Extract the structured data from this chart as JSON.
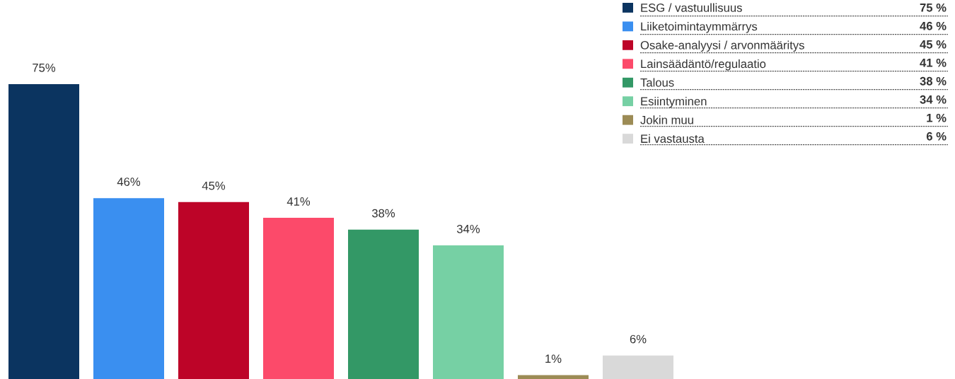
{
  "chart_data": {
    "type": "bar",
    "categories": [
      null
    ],
    "series": [
      {
        "name": "ESG / vastuullisuus",
        "color": "#0b3460",
        "values": [
          75
        ],
        "value_labels": [
          "75%"
        ]
      },
      {
        "name": "Liiketoimintaymmärrys",
        "color": "#3a8ff0",
        "values": [
          46
        ],
        "value_labels": [
          "46%"
        ]
      },
      {
        "name": "Osake-analyysi / arvonmääritys",
        "color": "#bd0428",
        "values": [
          45
        ],
        "value_labels": [
          "45%"
        ]
      },
      {
        "name": "Lainsäädäntö/regulaatio",
        "color": "#fc4a6a",
        "values": [
          41
        ],
        "value_labels": [
          "41%"
        ]
      },
      {
        "name": "Talous",
        "color": "#339866",
        "values": [
          38
        ],
        "value_labels": [
          "38%"
        ]
      },
      {
        "name": "Esiintyminen",
        "color": "#76d0a4",
        "values": [
          34
        ],
        "value_labels": [
          "34%"
        ]
      },
      {
        "name": "Jokin muu",
        "color": "#9c8b55",
        "values": [
          1
        ],
        "value_labels": [
          "1%"
        ]
      },
      {
        "name": "Ei vastausta",
        "color": "#d9d9d9",
        "values": [
          6
        ],
        "value_labels": [
          "6%"
        ]
      }
    ],
    "legend": "top right",
    "annotations": [
      "75 %",
      "46 %",
      "45 %",
      "41 %",
      "38 %",
      "34 %",
      "1 %",
      "6 %"
    ]
  }
}
